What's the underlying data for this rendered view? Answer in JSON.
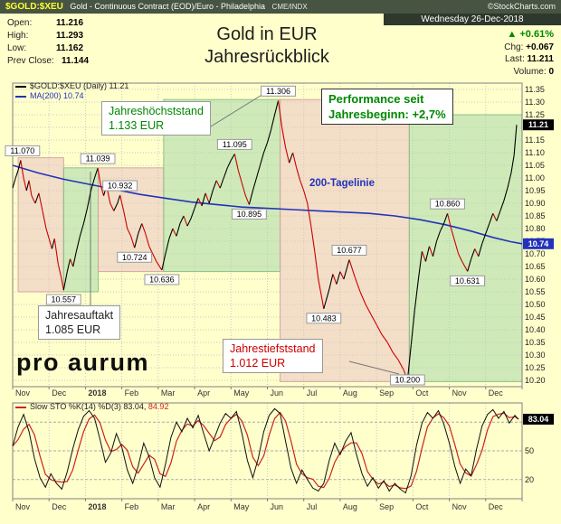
{
  "header": {
    "symbol": "$GOLD:$XEU",
    "description": "Gold - Continuous Contract (EOD)/Euro - Philadelphia",
    "exchange": "CME/INDX",
    "copyright": "©StockCharts.com"
  },
  "quote": {
    "date": "Wednesday 26-Dec-2018",
    "open_label": "Open:",
    "open": "11.216",
    "high_label": "High:",
    "high": "11.293",
    "low_label": "Low:",
    "low": "11.162",
    "prev_close_label": "Prev Close:",
    "prev_close": "11.144",
    "up_arrow": "▲",
    "pct_change": "+0.61%",
    "chg_label": "Chg:",
    "chg": "+0.067",
    "last_label": "Last:",
    "last": "11.211",
    "volume_label": "Volume:",
    "volume": "0"
  },
  "title": {
    "line1": "Gold in EUR",
    "line2": "Jahresrückblick"
  },
  "legend": {
    "main_line1": "$GOLD:$XEU (Daily) 11.21",
    "main_line2": "MA(200) 10.74",
    "sto_prefix": "Slow STO %K(14) %D(3)",
    "sto_k": "83.04,",
    "sto_d": "84.92"
  },
  "annotations": {
    "high": {
      "line1": "Jahreshöchststand",
      "line2": "1.133 EUR"
    },
    "performance": {
      "line1": "Performance seit",
      "line2": "Jahresbeginn: +2,7%"
    },
    "ma_label": "200-Tagelinie",
    "start": {
      "line1": "Jahresauftakt",
      "line2": "1.085 EUR"
    },
    "low": {
      "line1": "Jahrestiefststand",
      "line2": "1.012 EUR"
    },
    "logo": "pro aurum"
  },
  "colors": {
    "up": "#000000",
    "down": "#cc0000",
    "ma": "#2233bb",
    "grid": "#c8c8c8",
    "zone_green": "#a8d8a8",
    "zone_green_border": "#84bd84",
    "zone_red": "#eac3c3",
    "zone_red_border": "#d2a0a0",
    "accent_green": "#008800",
    "accent_red": "#cc0000",
    "panel_bg": "#ffffcc"
  },
  "chart_data": {
    "type": "line",
    "title": "Gold in EUR Jahresrückblick",
    "x_months": [
      "Nov",
      "Dec",
      "2018",
      "Feb",
      "Mar",
      "Apr",
      "May",
      "Jun",
      "Jul",
      "Aug",
      "Sep",
      "Oct",
      "Nov",
      "Dec"
    ],
    "main": {
      "ylim": [
        10.175,
        11.375
      ],
      "ytick_min": 10.2,
      "ytick_max": 11.35,
      "ytick_step": 0.05,
      "last_price": "11.21",
      "ma_last": "10.74",
      "price_series": [
        [
          0,
          10.96
        ],
        [
          0.08,
          11.0
        ],
        [
          0.15,
          11.03
        ],
        [
          0.22,
          11.07
        ],
        [
          0.3,
          11.0
        ],
        [
          0.38,
          10.95
        ],
        [
          0.45,
          10.99
        ],
        [
          0.52,
          10.93
        ],
        [
          0.62,
          10.9
        ],
        [
          0.72,
          10.94
        ],
        [
          0.82,
          10.87
        ],
        [
          0.92,
          10.8
        ],
        [
          1.0,
          10.76
        ],
        [
          1.08,
          10.72
        ],
        [
          1.15,
          10.76
        ],
        [
          1.25,
          10.66
        ],
        [
          1.33,
          10.61
        ],
        [
          1.4,
          10.557
        ],
        [
          1.5,
          10.63
        ],
        [
          1.58,
          10.68
        ],
        [
          1.66,
          10.65
        ],
        [
          1.75,
          10.71
        ],
        [
          1.85,
          10.77
        ],
        [
          1.95,
          10.82
        ],
        [
          2.05,
          10.88
        ],
        [
          2.15,
          10.95
        ],
        [
          2.25,
          11.0
        ],
        [
          2.34,
          11.039
        ],
        [
          2.42,
          10.97
        ],
        [
          2.5,
          10.93
        ],
        [
          2.58,
          10.97
        ],
        [
          2.68,
          10.9
        ],
        [
          2.78,
          10.87
        ],
        [
          2.88,
          10.9
        ],
        [
          2.95,
          10.932
        ],
        [
          3.05,
          10.87
        ],
        [
          3.15,
          10.8
        ],
        [
          3.25,
          10.77
        ],
        [
          3.35,
          10.724
        ],
        [
          3.45,
          10.78
        ],
        [
          3.55,
          10.82
        ],
        [
          3.65,
          10.78
        ],
        [
          3.75,
          10.73
        ],
        [
          3.85,
          10.7
        ],
        [
          3.95,
          10.67
        ],
        [
          4.1,
          10.636
        ],
        [
          4.2,
          10.7
        ],
        [
          4.3,
          10.76
        ],
        [
          4.4,
          10.8
        ],
        [
          4.5,
          10.77
        ],
        [
          4.6,
          10.82
        ],
        [
          4.7,
          10.85
        ],
        [
          4.8,
          10.81
        ],
        [
          4.9,
          10.84
        ],
        [
          5.0,
          10.88
        ],
        [
          5.1,
          10.92
        ],
        [
          5.2,
          10.89
        ],
        [
          5.3,
          10.94
        ],
        [
          5.4,
          10.9
        ],
        [
          5.5,
          10.95
        ],
        [
          5.6,
          10.99
        ],
        [
          5.7,
          10.96
        ],
        [
          5.8,
          11.0
        ],
        [
          5.9,
          11.04
        ],
        [
          6.0,
          11.07
        ],
        [
          6.1,
          11.095
        ],
        [
          6.2,
          11.03
        ],
        [
          6.3,
          10.98
        ],
        [
          6.4,
          10.93
        ],
        [
          6.5,
          10.895
        ],
        [
          6.6,
          10.95
        ],
        [
          6.7,
          11.0
        ],
        [
          6.8,
          11.05
        ],
        [
          6.9,
          11.1
        ],
        [
          7.0,
          11.14
        ],
        [
          7.1,
          11.19
        ],
        [
          7.2,
          11.25
        ],
        [
          7.3,
          11.306
        ],
        [
          7.4,
          11.2
        ],
        [
          7.5,
          11.12
        ],
        [
          7.6,
          11.06
        ],
        [
          7.7,
          11.1
        ],
        [
          7.8,
          11.04
        ],
        [
          7.9,
          10.99
        ],
        [
          8.0,
          10.95
        ],
        [
          8.1,
          10.9
        ],
        [
          8.2,
          10.81
        ],
        [
          8.3,
          10.71
        ],
        [
          8.4,
          10.6
        ],
        [
          8.55,
          10.483
        ],
        [
          8.7,
          10.56
        ],
        [
          8.8,
          10.62
        ],
        [
          8.9,
          10.58
        ],
        [
          9.0,
          10.63
        ],
        [
          9.1,
          10.6
        ],
        [
          9.25,
          10.677
        ],
        [
          9.4,
          10.61
        ],
        [
          9.55,
          10.55
        ],
        [
          9.7,
          10.5
        ],
        [
          9.85,
          10.46
        ],
        [
          10.0,
          10.42
        ],
        [
          10.15,
          10.38
        ],
        [
          10.3,
          10.35
        ],
        [
          10.45,
          10.31
        ],
        [
          10.6,
          10.28
        ],
        [
          10.75,
          10.24
        ],
        [
          10.85,
          10.2
        ],
        [
          10.95,
          10.34
        ],
        [
          11.05,
          10.48
        ],
        [
          11.15,
          10.6
        ],
        [
          11.25,
          10.71
        ],
        [
          11.35,
          10.67
        ],
        [
          11.45,
          10.73
        ],
        [
          11.55,
          10.69
        ],
        [
          11.65,
          10.75
        ],
        [
          11.75,
          10.79
        ],
        [
          11.85,
          10.82
        ],
        [
          11.95,
          10.86
        ],
        [
          12.05,
          10.8
        ],
        [
          12.15,
          10.75
        ],
        [
          12.25,
          10.7
        ],
        [
          12.35,
          10.67
        ],
        [
          12.5,
          10.631
        ],
        [
          12.6,
          10.68
        ],
        [
          12.7,
          10.72
        ],
        [
          12.8,
          10.69
        ],
        [
          12.9,
          10.74
        ],
        [
          13.0,
          10.78
        ],
        [
          13.1,
          10.82
        ],
        [
          13.2,
          10.86
        ],
        [
          13.3,
          10.83
        ],
        [
          13.4,
          10.87
        ],
        [
          13.5,
          10.91
        ],
        [
          13.6,
          10.96
        ],
        [
          13.7,
          11.02
        ],
        [
          13.78,
          11.09
        ],
        [
          13.85,
          11.21
        ]
      ],
      "ma_series": [
        [
          0,
          11.05
        ],
        [
          0.7,
          11.02
        ],
        [
          1.4,
          10.995
        ],
        [
          2.1,
          10.975
        ],
        [
          2.8,
          10.955
        ],
        [
          3.5,
          10.935
        ],
        [
          4.2,
          10.92
        ],
        [
          4.9,
          10.905
        ],
        [
          5.6,
          10.895
        ],
        [
          6.3,
          10.885
        ],
        [
          7.0,
          10.88
        ],
        [
          7.7,
          10.875
        ],
        [
          8.4,
          10.87
        ],
        [
          9.1,
          10.865
        ],
        [
          9.8,
          10.86
        ],
        [
          10.5,
          10.85
        ],
        [
          11.2,
          10.835
        ],
        [
          11.9,
          10.815
        ],
        [
          12.6,
          10.79
        ],
        [
          13.2,
          10.765
        ],
        [
          13.7,
          10.748
        ],
        [
          14.0,
          10.74
        ]
      ],
      "zones": [
        {
          "m1": 0.15,
          "m2": 1.4,
          "p1": 10.55,
          "p2": 11.08,
          "c": "r"
        },
        {
          "m1": 1.4,
          "m2": 2.35,
          "p1": 10.55,
          "p2": 11.04,
          "c": "g"
        },
        {
          "m1": 2.35,
          "m2": 4.15,
          "p1": 10.63,
          "p2": 11.04,
          "c": "r"
        },
        {
          "m1": 4.15,
          "m2": 7.35,
          "p1": 10.63,
          "p2": 11.31,
          "c": "g"
        },
        {
          "m1": 7.35,
          "m2": 10.9,
          "p1": 10.195,
          "p2": 11.31,
          "c": "r"
        },
        {
          "m1": 10.9,
          "m2": 14.0,
          "p1": 10.195,
          "p2": 11.25,
          "c": "g"
        }
      ],
      "price_labels": [
        {
          "text": "11.070",
          "m": 0.27,
          "p": 11.07,
          "pos": "above"
        },
        {
          "text": "10.557",
          "m": 1.4,
          "p": 10.557,
          "pos": "below"
        },
        {
          "text": "11.039",
          "m": 2.34,
          "p": 11.039,
          "pos": "above"
        },
        {
          "text": "10.932",
          "m": 2.95,
          "p": 10.932,
          "pos": "above"
        },
        {
          "text": "10.724",
          "m": 3.35,
          "p": 10.724,
          "pos": "below"
        },
        {
          "text": "10.636",
          "m": 4.1,
          "p": 10.636,
          "pos": "below"
        },
        {
          "text": "11.095",
          "m": 6.1,
          "p": 11.095,
          "pos": "above"
        },
        {
          "text": "10.895",
          "m": 6.5,
          "p": 10.895,
          "pos": "below"
        },
        {
          "text": "11.306",
          "m": 7.3,
          "p": 11.306,
          "pos": "above"
        },
        {
          "text": "10.483",
          "m": 8.55,
          "p": 10.483,
          "pos": "below"
        },
        {
          "text": "10.677",
          "m": 9.25,
          "p": 10.677,
          "pos": "above"
        },
        {
          "text": "10.200",
          "m": 10.85,
          "p": 10.2,
          "pos": "mid"
        },
        {
          "text": "10.860",
          "m": 11.95,
          "p": 10.86,
          "pos": "above"
        },
        {
          "text": "10.631",
          "m": 12.5,
          "p": 10.631,
          "pos": "below"
        }
      ]
    },
    "sto": {
      "ylim": [
        0,
        100
      ],
      "yticks": [
        80,
        50,
        20
      ],
      "last_label": "83.04",
      "k_series": [
        [
          0,
          55
        ],
        [
          0.15,
          75
        ],
        [
          0.3,
          88
        ],
        [
          0.45,
          70
        ],
        [
          0.6,
          42
        ],
        [
          0.75,
          22
        ],
        [
          0.9,
          12
        ],
        [
          1.05,
          26
        ],
        [
          1.2,
          16
        ],
        [
          1.35,
          10
        ],
        [
          1.5,
          28
        ],
        [
          1.65,
          52
        ],
        [
          1.8,
          72
        ],
        [
          1.95,
          86
        ],
        [
          2.1,
          92
        ],
        [
          2.25,
          84
        ],
        [
          2.4,
          62
        ],
        [
          2.55,
          38
        ],
        [
          2.7,
          48
        ],
        [
          2.85,
          68
        ],
        [
          3.0,
          54
        ],
        [
          3.15,
          30
        ],
        [
          3.3,
          16
        ],
        [
          3.45,
          34
        ],
        [
          3.6,
          58
        ],
        [
          3.75,
          44
        ],
        [
          3.9,
          22
        ],
        [
          4.05,
          12
        ],
        [
          4.2,
          36
        ],
        [
          4.35,
          64
        ],
        [
          4.5,
          80
        ],
        [
          4.65,
          70
        ],
        [
          4.8,
          84
        ],
        [
          4.95,
          74
        ],
        [
          5.1,
          87
        ],
        [
          5.25,
          68
        ],
        [
          5.4,
          50
        ],
        [
          5.55,
          64
        ],
        [
          5.7,
          79
        ],
        [
          5.85,
          89
        ],
        [
          6.0,
          84
        ],
        [
          6.15,
          91
        ],
        [
          6.3,
          68
        ],
        [
          6.45,
          40
        ],
        [
          6.6,
          22
        ],
        [
          6.75,
          42
        ],
        [
          6.9,
          70
        ],
        [
          7.05,
          87
        ],
        [
          7.2,
          94
        ],
        [
          7.35,
          89
        ],
        [
          7.5,
          60
        ],
        [
          7.65,
          32
        ],
        [
          7.8,
          16
        ],
        [
          7.95,
          30
        ],
        [
          8.1,
          20
        ],
        [
          8.25,
          11
        ],
        [
          8.4,
          8
        ],
        [
          8.55,
          16
        ],
        [
          8.7,
          40
        ],
        [
          8.85,
          58
        ],
        [
          9.0,
          46
        ],
        [
          9.15,
          60
        ],
        [
          9.3,
          69
        ],
        [
          9.45,
          46
        ],
        [
          9.6,
          26
        ],
        [
          9.75,
          13
        ],
        [
          9.9,
          22
        ],
        [
          10.05,
          11
        ],
        [
          10.2,
          19
        ],
        [
          10.35,
          8
        ],
        [
          10.5,
          16
        ],
        [
          10.65,
          10
        ],
        [
          10.8,
          6
        ],
        [
          10.95,
          24
        ],
        [
          11.1,
          56
        ],
        [
          11.25,
          79
        ],
        [
          11.4,
          90
        ],
        [
          11.55,
          84
        ],
        [
          11.7,
          92
        ],
        [
          11.85,
          78
        ],
        [
          12.0,
          58
        ],
        [
          12.15,
          34
        ],
        [
          12.3,
          16
        ],
        [
          12.45,
          31
        ],
        [
          12.6,
          24
        ],
        [
          12.75,
          52
        ],
        [
          12.9,
          76
        ],
        [
          13.05,
          88
        ],
        [
          13.2,
          93
        ],
        [
          13.35,
          84
        ],
        [
          13.5,
          91
        ],
        [
          13.65,
          79
        ],
        [
          13.8,
          87
        ],
        [
          13.9,
          83.04
        ]
      ]
    }
  }
}
